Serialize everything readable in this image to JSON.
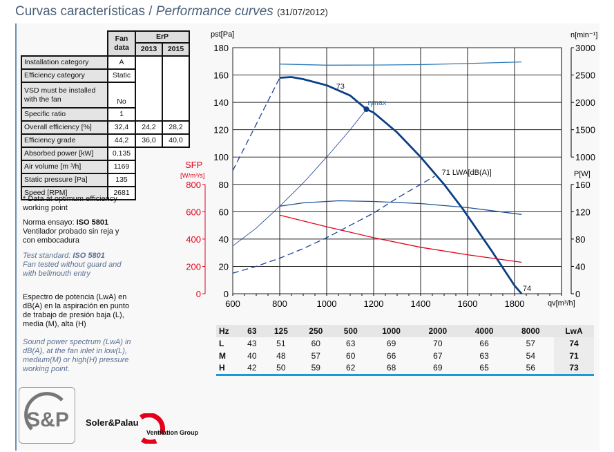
{
  "header": {
    "title_es": "Curvas características",
    "sep": " / ",
    "title_en": "Performance curves",
    "date": "(31/07/2012)"
  },
  "fan_table": {
    "head": {
      "fan": "Fan data",
      "erp": "ErP",
      "y2013": "2013",
      "y2015": "2015"
    },
    "rows": [
      {
        "label": "Installation category",
        "fan": "A",
        "e13": "",
        "e15": ""
      },
      {
        "label": "Efficiency category",
        "fan": "Static",
        "e13": "",
        "e15": ""
      },
      {
        "label": "VSD must be installed with the fan",
        "fan": "No",
        "e13": "",
        "e15": ""
      },
      {
        "label": "Specific ratio",
        "fan": "1",
        "e13": "",
        "e15": ""
      },
      {
        "label": "Overall efficiency [%]",
        "fan": "32,4",
        "e13": "24,2",
        "e15": "28,2"
      },
      {
        "label": "Efficiency grade",
        "fan": "44,2",
        "e13": "36,0",
        "e15": "40,0"
      },
      {
        "label": "Absorbed power [kW]",
        "fan": "0,135"
      },
      {
        "label": "Air volume [m ³/h]",
        "fan": "1169"
      },
      {
        "label": "Static pressure [Pa]",
        "fan": "135"
      },
      {
        "label": "Speed [RPM]",
        "fan": "2681"
      }
    ]
  },
  "notes": {
    "optimum": "* Data at optimum efficiency working point",
    "norma_prefix": "Norma ensayo: ",
    "norma_std": "ISO 5801",
    "norma_text": "Ventilador probado sin reja y con embocadura",
    "test_prefix": "Test standard: ",
    "test_std": "ISO 5801",
    "test_text": "Fan tested without guard and with bellmouth entry",
    "espectro": "Espectro de potencia (LwA) en dB(A) en la aspiración en punto de trabajo de presión baja (L), media (M), alta (H)",
    "spectrum": "Sound power spectrum (LwA) in dB(A), at the fan inlet in low(L), medium(M) or high(H) pressure working point."
  },
  "sound_table": {
    "header": [
      "Hz",
      "63",
      "125",
      "250",
      "500",
      "1000",
      "2000",
      "4000",
      "8000",
      "LwA"
    ],
    "rows": [
      [
        "L",
        "43",
        "51",
        "60",
        "63",
        "69",
        "70",
        "66",
        "57",
        "74"
      ],
      [
        "M",
        "40",
        "48",
        "57",
        "60",
        "66",
        "67",
        "63",
        "54",
        "71"
      ],
      [
        "H",
        "42",
        "50",
        "59",
        "62",
        "68",
        "69",
        "65",
        "56",
        "73"
      ]
    ]
  },
  "brand": {
    "logo_text": "S&P",
    "name": "Soler&Palau",
    "group": "Ventilation Group",
    "accent": "#e3001b"
  },
  "chart_data": {
    "type": "line",
    "xlabel": "qv[m³/h]",
    "xlim": [
      600,
      2000
    ],
    "xticks": [
      600,
      800,
      1000,
      1200,
      1400,
      1600,
      1800
    ],
    "ylabel": "pst[Pa]",
    "ylim": [
      0,
      180
    ],
    "yticks": [
      0,
      20,
      40,
      60,
      80,
      100,
      120,
      140,
      160,
      180
    ],
    "sfp_axis": {
      "label": "SFP",
      "unit": "[W/m³/s]",
      "range": [
        0,
        800
      ],
      "ticks": [
        0,
        200,
        400,
        600,
        800
      ],
      "color": "#e3001b"
    },
    "n_axis": {
      "label": "n[min⁻¹]",
      "range": [
        1000,
        3000
      ],
      "ticks": [
        1000,
        1500,
        2000,
        2500,
        3000
      ]
    },
    "p_axis": {
      "label": "P[W]",
      "range": [
        0,
        160
      ],
      "ticks": [
        0,
        40,
        80,
        120,
        160
      ]
    },
    "grid": true,
    "series": [
      {
        "axis": "pressure",
        "style": "thick",
        "color": "#0a3e86",
        "points": [
          [
            800,
            158
          ],
          [
            850,
            158.5
          ],
          [
            900,
            157
          ],
          [
            1000,
            152.5
          ],
          [
            1100,
            145
          ],
          [
            1169,
            135
          ],
          [
            1200,
            132.5
          ],
          [
            1300,
            118
          ],
          [
            1400,
            100
          ],
          [
            1500,
            80
          ],
          [
            1580,
            62
          ],
          [
            1700,
            32
          ],
          [
            1800,
            6
          ],
          [
            1830,
            0
          ]
        ]
      },
      {
        "axis": "n",
        "style": "solid",
        "color": "#2a7ab8",
        "points": [
          [
            800,
            2700
          ],
          [
            1000,
            2680
          ],
          [
            1200,
            2683
          ],
          [
            1400,
            2690
          ],
          [
            1600,
            2710
          ],
          [
            1830,
            2740
          ]
        ]
      },
      {
        "axis": "power",
        "style": "solid",
        "color": "#1b4f96",
        "points": [
          [
            800,
            128
          ],
          [
            900,
            133
          ],
          [
            1050,
            136
          ],
          [
            1200,
            135
          ],
          [
            1400,
            132
          ],
          [
            1600,
            126
          ],
          [
            1830,
            116
          ]
        ]
      },
      {
        "axis": "sfp",
        "style": "solid",
        "color": "#e3001b",
        "points": [
          [
            800,
            575
          ],
          [
            1000,
            490
          ],
          [
            1200,
            410
          ],
          [
            1400,
            340
          ],
          [
            1600,
            285
          ],
          [
            1830,
            230
          ]
        ]
      },
      {
        "axis": "pressure",
        "style": "thin",
        "color": "#1b3f96",
        "points": [
          [
            600,
            35
          ],
          [
            700,
            48
          ],
          [
            800,
            64
          ],
          [
            900,
            81
          ],
          [
            1000,
            100
          ],
          [
            1100,
            120
          ],
          [
            1169,
            135
          ]
        ]
      },
      {
        "axis": "pressure",
        "style": "dashed",
        "color": "#1b3f96",
        "points": [
          [
            600,
            90
          ],
          [
            700,
            124
          ],
          [
            800,
            158
          ]
        ]
      },
      {
        "axis": "pressure",
        "style": "dashed",
        "color": "#1b3f96",
        "points": [
          [
            600,
            15
          ],
          [
            700,
            20
          ],
          [
            800,
            26
          ],
          [
            900,
            33
          ],
          [
            1000,
            41
          ],
          [
            1100,
            50
          ],
          [
            1200,
            59
          ],
          [
            1300,
            70
          ],
          [
            1460,
            86
          ]
        ]
      }
    ],
    "optimum_point": [
      1169,
      135
    ],
    "annotations": [
      {
        "text": "73",
        "at": [
          1040,
          150
        ]
      },
      {
        "text": "ηmax",
        "at": [
          1175,
          138
        ]
      },
      {
        "text": "71 LWA[dB(A)]",
        "at": [
          1490,
          87
        ]
      },
      {
        "text": "74",
        "at": [
          1835,
          2
        ]
      }
    ]
  }
}
